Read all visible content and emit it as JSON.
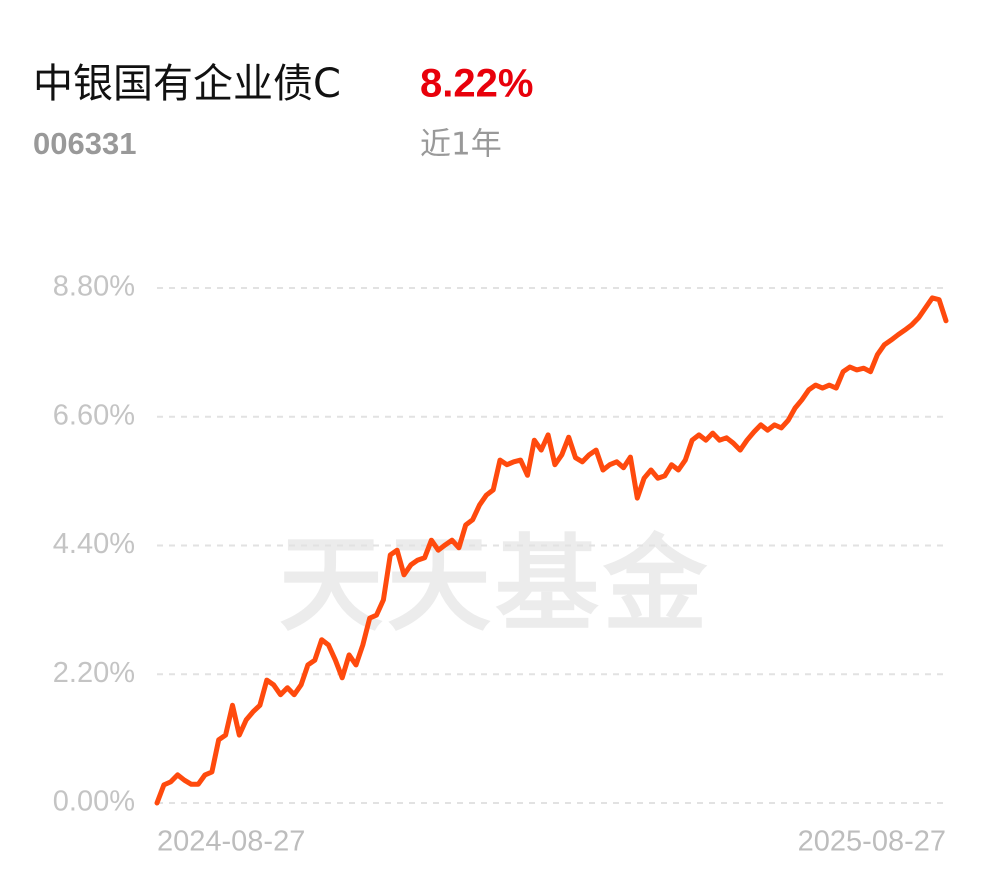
{
  "header": {
    "name": "中银国有企业债C",
    "code": "006331",
    "return": "8.22%",
    "period": "近1年",
    "watermark": "天天基金"
  },
  "chart_data": {
    "type": "line",
    "color": "#ff4a0d",
    "grid": true,
    "ylim": [
      0,
      8.8
    ],
    "yticks": [
      {
        "value": 0,
        "label": "0.00%"
      },
      {
        "value": 2.2,
        "label": "2.20%"
      },
      {
        "value": 4.4,
        "label": "4.40%"
      },
      {
        "value": 6.6,
        "label": "6.60%"
      },
      {
        "value": 8.8,
        "label": "8.80%"
      }
    ],
    "categories": [
      "2024-08-27",
      null,
      null,
      null,
      null,
      null,
      null,
      null,
      null,
      null,
      null,
      null,
      null,
      null,
      null,
      null,
      null,
      null,
      null,
      null,
      null,
      null,
      null,
      null,
      null,
      null,
      null,
      null,
      null,
      null,
      null,
      null,
      null,
      null,
      null,
      null,
      null,
      null,
      null,
      null,
      null,
      null,
      null,
      null,
      null,
      null,
      null,
      null,
      null,
      null,
      null,
      null,
      null,
      null,
      null,
      null,
      null,
      null,
      null,
      null,
      null,
      null,
      null,
      null,
      null,
      null,
      null,
      null,
      null,
      null,
      null,
      null,
      null,
      null,
      null,
      null,
      null,
      null,
      null,
      null,
      null,
      null,
      null,
      null,
      null,
      null,
      null,
      null,
      null,
      null,
      null,
      null,
      null,
      null,
      null,
      null,
      null,
      null,
      null,
      null,
      null,
      null,
      null,
      null,
      null,
      null,
      null,
      null,
      null,
      null,
      null,
      null,
      null,
      null,
      null,
      "2025-08-27"
    ],
    "values": [
      0,
      0.31,
      0.36,
      0.48,
      0.39,
      0.32,
      0.32,
      0.48,
      0.53,
      1.08,
      1.16,
      1.67,
      1.16,
      1.42,
      1.56,
      1.67,
      2.1,
      2.02,
      1.85,
      1.97,
      1.85,
      2.02,
      2.36,
      2.44,
      2.79,
      2.7,
      2.44,
      2.14,
      2.53,
      2.36,
      2.7,
      3.16,
      3.21,
      3.47,
      4.24,
      4.32,
      3.9,
      4.07,
      4.15,
      4.19,
      4.49,
      4.32,
      4.41,
      4.49,
      4.36,
      4.75,
      4.84,
      5.09,
      5.26,
      5.35,
      5.86,
      5.78,
      5.83,
      5.86,
      5.6,
      6.2,
      6.03,
      6.29,
      5.78,
      5.95,
      6.25,
      5.9,
      5.83,
      5.95,
      6.03,
      5.69,
      5.78,
      5.83,
      5.73,
      5.91,
      5.21,
      5.55,
      5.69,
      5.55,
      5.59,
      5.78,
      5.69,
      5.86,
      6.2,
      6.29,
      6.2,
      6.32,
      6.2,
      6.24,
      6.15,
      6.03,
      6.2,
      6.34,
      6.46,
      6.37,
      6.46,
      6.41,
      6.54,
      6.75,
      6.89,
      7.06,
      7.14,
      7.09,
      7.14,
      7.09,
      7.37,
      7.45,
      7.4,
      7.43,
      7.37,
      7.66,
      7.83,
      7.91,
      8.0,
      8.08,
      8.17,
      8.29,
      8.46,
      8.63,
      8.6,
      8.24
    ]
  }
}
